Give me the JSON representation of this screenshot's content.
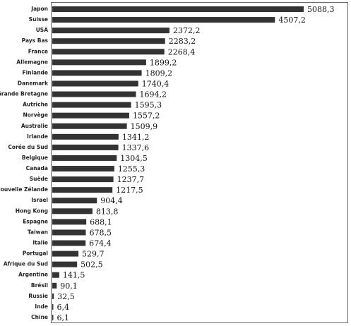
{
  "chart_data": {
    "type": "bar",
    "orientation": "horizontal",
    "color": "#333333",
    "categories": [
      "Japon",
      "Suisse",
      "USA",
      "Pays Bas",
      "France",
      "Allemagne",
      "Finlande",
      "Danemark",
      "Grande Bretagne",
      "Autriche",
      "Norvège",
      "Australie",
      "Irlande",
      "Corée du Sud",
      "Belgique",
      "Canada",
      "Suède",
      "Nouvelle Zélande",
      "Israel",
      "Hong Kong",
      "Espagne",
      "Taiwan",
      "Italie",
      "Portugal",
      "Afrique du Sud",
      "Argentine",
      "Brésil",
      "Russie",
      "Inde",
      "Chine"
    ],
    "values": [
      5088.3,
      4507.2,
      2372.2,
      2283.2,
      2268.4,
      1899.2,
      1809.2,
      1740.4,
      1694.2,
      1595.3,
      1557.2,
      1509.9,
      1341.2,
      1337.6,
      1304.5,
      1255.3,
      1237.7,
      1217.5,
      904.4,
      813.8,
      688.1,
      678.5,
      674.4,
      529.7,
      502.5,
      141.5,
      90.1,
      32.5,
      6.4,
      6.1
    ],
    "value_labels": [
      "5088,3",
      "4507,2",
      "2372,2",
      "2283,2",
      "2268,4",
      "1899,2",
      "1809,2",
      "1740,4",
      "1694,2",
      "1595,3",
      "1557,2",
      "1509,9",
      "1341,2",
      "1337,6",
      "1304,5",
      "1255,3",
      "1237,7",
      "1217,5",
      "904,4",
      "813,8",
      "688,1",
      "678,5",
      "674,4",
      "529,7",
      "502,5",
      "141,5",
      "90,1",
      "32,5",
      "6,4",
      "6,1"
    ]
  }
}
